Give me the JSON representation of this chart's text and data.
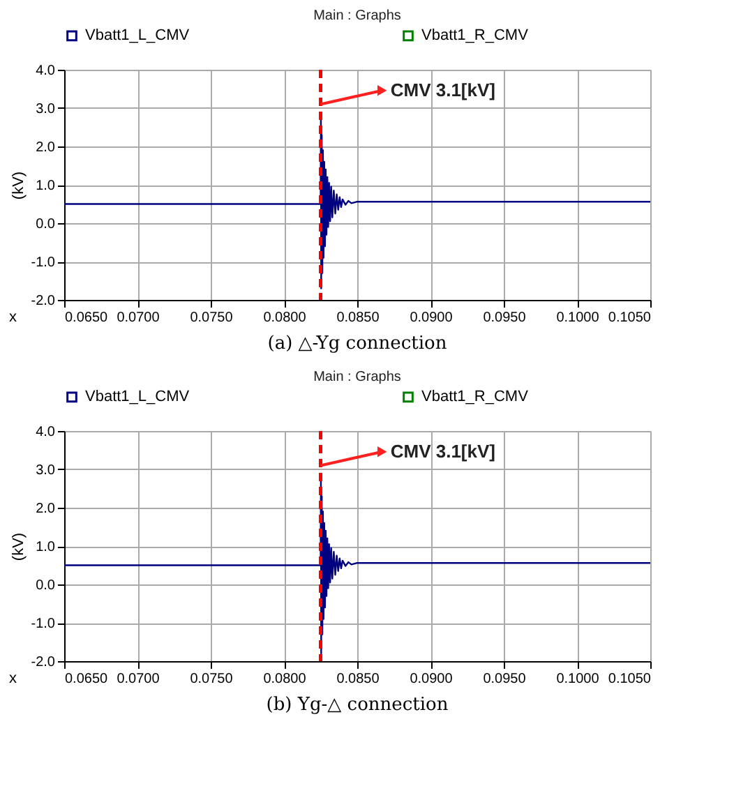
{
  "chart_data": [
    {
      "type": "line",
      "title": "Main : Graphs",
      "xlabel": "x",
      "ylabel": "(kV)",
      "x": [
        0.065,
        0.0825,
        0.08252,
        0.08254,
        0.08258,
        0.08262,
        0.08266,
        0.0827,
        0.08275,
        0.0828,
        0.08285,
        0.0829,
        0.08296,
        0.08302,
        0.08308,
        0.08315,
        0.08322,
        0.0833,
        0.0834,
        0.0835,
        0.0836,
        0.0837,
        0.0838,
        0.0839,
        0.084,
        0.0842,
        0.0844,
        0.0846,
        0.085,
        0.105
      ],
      "series": [
        {
          "name": "Vbatt1_L_CMV",
          "color": "#000080",
          "values": [
            0.5,
            0.5,
            2.7,
            -1.7,
            2.3,
            -1.3,
            1.9,
            -0.9,
            1.6,
            -0.6,
            1.4,
            -0.3,
            1.2,
            -0.1,
            1.05,
            0.05,
            0.95,
            0.15,
            0.85,
            0.25,
            0.75,
            0.35,
            0.68,
            0.42,
            0.62,
            0.48,
            0.58,
            0.52,
            0.56,
            0.56
          ]
        },
        {
          "name": "Vbatt1_R_CMV",
          "color": "#008000",
          "values": [
            null,
            null,
            null,
            null,
            null,
            null,
            null,
            null,
            null,
            null,
            null,
            null,
            null,
            null,
            null,
            null,
            null,
            null,
            null,
            null,
            null,
            null,
            null,
            null,
            null,
            null,
            null,
            null,
            null,
            null
          ]
        }
      ],
      "xlim": [
        0.065,
        0.105
      ],
      "xticks": [
        {
          "value": 0.065,
          "label": "0.0650"
        },
        {
          "value": 0.07,
          "label": "0.0700"
        },
        {
          "value": 0.075,
          "label": "0.0750"
        },
        {
          "value": 0.08,
          "label": "0.0800"
        },
        {
          "value": 0.085,
          "label": "0.0850"
        },
        {
          "value": 0.09,
          "label": "0.0900"
        },
        {
          "value": 0.095,
          "label": "0.0950"
        },
        {
          "value": 0.1,
          "label": "0.1000"
        },
        {
          "value": 0.105,
          "label": "0.1050"
        }
      ],
      "ylim": [
        -2,
        4
      ],
      "yticks": [
        {
          "value": -2,
          "label": "-2.0"
        },
        {
          "value": -1,
          "label": "-1.0"
        },
        {
          "value": 0,
          "label": "0.0"
        },
        {
          "value": 1,
          "label": "1.0"
        },
        {
          "value": 2,
          "label": "2.0"
        },
        {
          "value": 3,
          "label": "3.0"
        },
        {
          "value": 4,
          "label": "4.0"
        }
      ],
      "ref_lines": [
        {
          "axis": "x",
          "value": 0.0825,
          "color": "#ff0000",
          "line_style": "dashed"
        }
      ],
      "annotations": [
        {
          "text": "CMV 3.1[kV]",
          "x": 0.0825,
          "y": 3.1
        },
        "(a) △-Yg connection"
      ],
      "grid": true,
      "legend": "top",
      "marker": "none",
      "line_style": "solid"
    },
    {
      "type": "line",
      "title": "Main : Graphs",
      "xlabel": "x",
      "ylabel": "(kV)",
      "x": [
        0.065,
        0.0825,
        0.08252,
        0.08254,
        0.08258,
        0.08262,
        0.08266,
        0.0827,
        0.08275,
        0.0828,
        0.08285,
        0.0829,
        0.08296,
        0.08302,
        0.08308,
        0.08315,
        0.08322,
        0.0833,
        0.0834,
        0.0835,
        0.0836,
        0.0837,
        0.0838,
        0.0839,
        0.084,
        0.0842,
        0.0844,
        0.0846,
        0.085,
        0.105
      ],
      "series": [
        {
          "name": "Vbatt1_L_CMV",
          "color": "#000080",
          "values": [
            0.5,
            0.5,
            2.7,
            -1.8,
            2.3,
            -1.3,
            1.9,
            -0.9,
            1.6,
            -0.6,
            1.4,
            -0.3,
            1.2,
            -0.1,
            1.05,
            0.05,
            0.95,
            0.15,
            0.85,
            0.25,
            0.75,
            0.35,
            0.68,
            0.42,
            0.62,
            0.48,
            0.58,
            0.52,
            0.56,
            0.56
          ]
        },
        {
          "name": "Vbatt1_R_CMV",
          "color": "#008000",
          "values": [
            null,
            null,
            null,
            null,
            null,
            null,
            null,
            null,
            null,
            null,
            null,
            null,
            null,
            null,
            null,
            null,
            null,
            null,
            null,
            null,
            null,
            null,
            null,
            null,
            null,
            null,
            null,
            null,
            null,
            null
          ]
        }
      ],
      "xlim": [
        0.065,
        0.105
      ],
      "xticks": [
        {
          "value": 0.065,
          "label": "0.0650"
        },
        {
          "value": 0.07,
          "label": "0.0700"
        },
        {
          "value": 0.075,
          "label": "0.0750"
        },
        {
          "value": 0.08,
          "label": "0.0800"
        },
        {
          "value": 0.085,
          "label": "0.0850"
        },
        {
          "value": 0.09,
          "label": "0.0900"
        },
        {
          "value": 0.095,
          "label": "0.0950"
        },
        {
          "value": 0.1,
          "label": "0.1000"
        },
        {
          "value": 0.105,
          "label": "0.1050"
        }
      ],
      "ylim": [
        -2,
        4
      ],
      "yticks": [
        {
          "value": -2,
          "label": "-2.0"
        },
        {
          "value": -1,
          "label": "-1.0"
        },
        {
          "value": 0,
          "label": "0.0"
        },
        {
          "value": 1,
          "label": "1.0"
        },
        {
          "value": 2,
          "label": "2.0"
        },
        {
          "value": 3,
          "label": "3.0"
        },
        {
          "value": 4,
          "label": "4.0"
        }
      ],
      "ref_lines": [
        {
          "axis": "x",
          "value": 0.0825,
          "color": "#ff0000",
          "line_style": "dashed"
        }
      ],
      "annotations": [
        {
          "text": "CMV 3.1[kV]",
          "x": 0.0825,
          "y": 3.1
        },
        "(b) Yg-△ connection"
      ],
      "grid": true,
      "legend": "top",
      "marker": "none",
      "line_style": "solid"
    }
  ]
}
